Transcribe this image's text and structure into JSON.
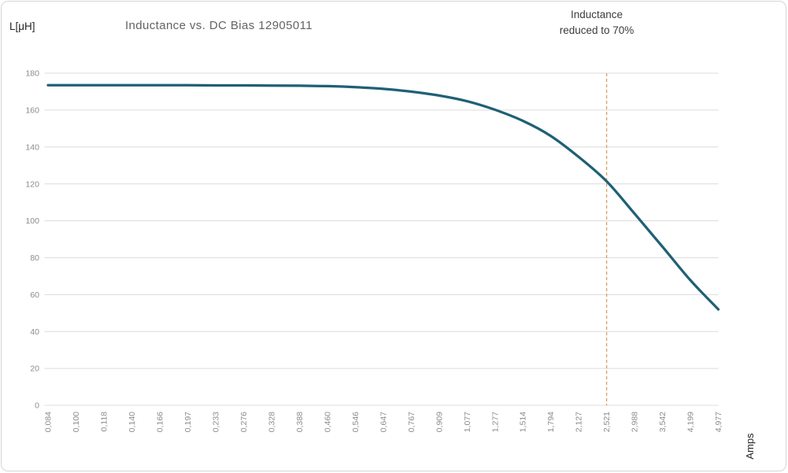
{
  "chart_data": {
    "type": "line",
    "title": "Inductance vs. DC Bias 12905011",
    "xlabel": "Amps",
    "ylabel": "L[μH]",
    "categories": [
      "0,084",
      "0,100",
      "0,118",
      "0,140",
      "0,166",
      "0,197",
      "0,233",
      "0,276",
      "0,328",
      "0,388",
      "0,460",
      "0,546",
      "0,647",
      "0,767",
      "0,909",
      "1,077",
      "1,277",
      "1,514",
      "1,794",
      "2,127",
      "2,521",
      "2,988",
      "3,542",
      "4,199",
      "4,977"
    ],
    "values": [
      173.5,
      173.5,
      173.5,
      173.5,
      173.5,
      173.5,
      173.4,
      173.4,
      173.3,
      173.2,
      173.0,
      172.4,
      171.5,
      170.0,
      167.9,
      164.8,
      160.2,
      154.2,
      146.0,
      134.6,
      121.4,
      103.9,
      86.0,
      67.8,
      52.0
    ],
    "y_ticks": [
      0,
      20,
      40,
      60,
      80,
      100,
      120,
      140,
      160,
      180
    ],
    "ylim": [
      0,
      180
    ],
    "x_axis_type": "category",
    "grid": "horizontal",
    "legend": "none",
    "annotation": {
      "line1": "Inductance",
      "line2": "reduced to 70%",
      "at_category": "2,521",
      "marker": "vertical-dashed-line"
    },
    "colors": {
      "series_line": "#1f6075",
      "annotation_line": "#d9a05f",
      "gridline": "#dcdcdc",
      "tick_label": "#8c8c8c",
      "title_text": "#646464",
      "annotation_text": "#3c3c3c",
      "axis_unit_text": "#262626",
      "background": "#ffffff",
      "frame_border": "#d6d6d6"
    }
  }
}
